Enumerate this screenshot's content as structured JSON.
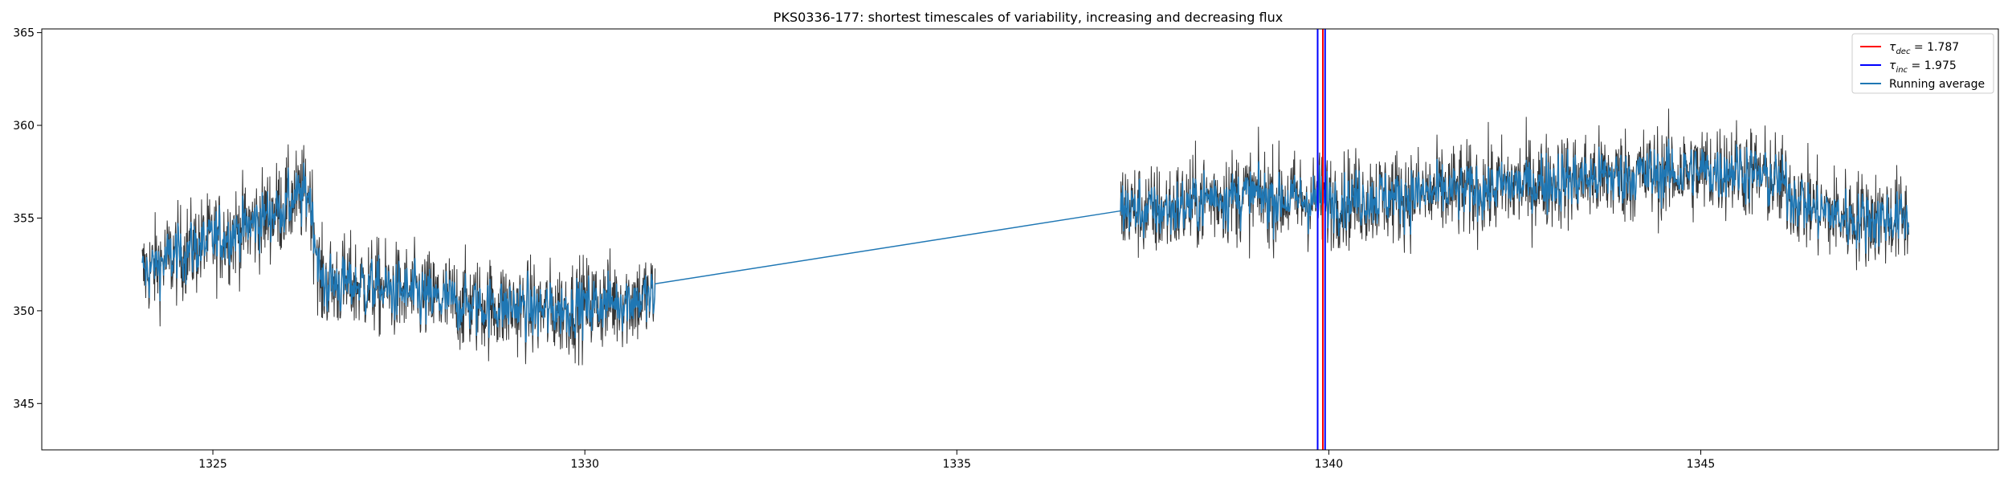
{
  "chart_data": {
    "type": "line",
    "title": "PKS0336-177: shortest timescales of variability, increasing and decreasing flux",
    "xlabel": "",
    "ylabel": "",
    "xlim": [
      1322.7,
      1349.0
    ],
    "ylim": [
      342.5,
      365.2
    ],
    "x_ticks": [
      1325,
      1330,
      1335,
      1340,
      1345
    ],
    "y_ticks": [
      345,
      350,
      355,
      360,
      365
    ],
    "grid": false,
    "legend_placement": "top-right",
    "legend": [
      {
        "prefix": "τ",
        "sub": "dec",
        "suffix": " = 1.787",
        "color": "#ff0000"
      },
      {
        "prefix": "τ",
        "sub": "inc",
        "suffix": " = 1.975",
        "color": "#0000ff"
      },
      {
        "prefix": "",
        "sub": "",
        "suffix": "Running average",
        "color": "#1f77b4"
      }
    ],
    "vertical_lines": [
      {
        "name": "tau_dec",
        "x": 1339.92,
        "color": "#ff0000"
      },
      {
        "name": "tau_inc",
        "x": 1339.85,
        "color": "#0000ff"
      },
      {
        "name": "tau_inc_2",
        "x": 1339.95,
        "color": "#0000ff"
      }
    ],
    "series": [
      {
        "name": "Running average",
        "color": "#1f77b4",
        "trend": [
          [
            1324.05,
            352.0
          ],
          [
            1324.5,
            353.0
          ],
          [
            1325.0,
            353.8
          ],
          [
            1325.5,
            354.6
          ],
          [
            1326.0,
            355.8
          ],
          [
            1326.3,
            356.4
          ],
          [
            1326.45,
            351.5
          ],
          [
            1327.0,
            351.4
          ],
          [
            1327.5,
            351.0
          ],
          [
            1328.0,
            350.6
          ],
          [
            1328.5,
            350.3
          ],
          [
            1329.0,
            350.2
          ],
          [
            1329.5,
            350.0
          ],
          [
            1330.0,
            350.3
          ],
          [
            1330.5,
            350.6
          ],
          [
            1330.95,
            350.7
          ],
          [
            1337.2,
            355.6
          ],
          [
            1337.6,
            355.3
          ],
          [
            1338.0,
            355.6
          ],
          [
            1338.5,
            356.2
          ],
          [
            1339.0,
            356.2
          ],
          [
            1339.5,
            356.0
          ],
          [
            1340.0,
            356.0
          ],
          [
            1341.0,
            356.2
          ],
          [
            1342.0,
            356.5
          ],
          [
            1343.0,
            357.0
          ],
          [
            1344.0,
            357.3
          ],
          [
            1345.0,
            357.5
          ],
          [
            1345.5,
            357.7
          ],
          [
            1346.0,
            357.0
          ],
          [
            1346.5,
            355.5
          ],
          [
            1347.0,
            355.0
          ],
          [
            1347.8,
            355.0
          ]
        ]
      }
    ],
    "noise_amplitude": 1.3
  }
}
